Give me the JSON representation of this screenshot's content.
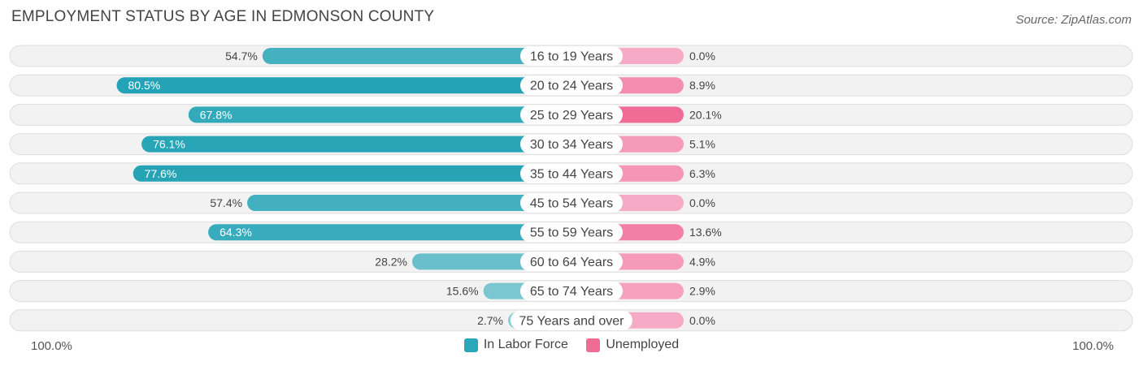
{
  "title": "EMPLOYMENT STATUS BY AGE IN EDMONSON COUNTY",
  "source": "Source: ZipAtlas.com",
  "axis": {
    "left_label": "100.0%",
    "right_label": "100.0%"
  },
  "legend": [
    {
      "label": "In Labor Force",
      "color": "#2aa7b8"
    },
    {
      "label": "Unemployed",
      "color": "#f06b96"
    }
  ],
  "chart_data": {
    "type": "bar",
    "orientation": "horizontal-diverging",
    "title": "EMPLOYMENT STATUS BY AGE IN EDMONSON COUNTY",
    "categories": [
      "16 to 19 Years",
      "20 to 24 Years",
      "25 to 29 Years",
      "30 to 34 Years",
      "35 to 44 Years",
      "45 to 54 Years",
      "55 to 59 Years",
      "60 to 64 Years",
      "65 to 74 Years",
      "75 Years and over"
    ],
    "series": [
      {
        "name": "In Labor Force",
        "values": [
          54.7,
          80.5,
          67.8,
          76.1,
          77.6,
          57.4,
          64.3,
          28.2,
          15.6,
          2.7
        ],
        "labels": [
          "54.7%",
          "80.5%",
          "67.8%",
          "76.1%",
          "77.6%",
          "57.4%",
          "64.3%",
          "28.2%",
          "15.6%",
          "2.7%"
        ]
      },
      {
        "name": "Unemployed",
        "values": [
          0.0,
          8.9,
          20.1,
          5.1,
          6.3,
          0.0,
          13.6,
          4.9,
          2.9,
          0.0
        ],
        "labels": [
          "0.0%",
          "8.9%",
          "20.1%",
          "5.1%",
          "6.3%",
          "0.0%",
          "13.6%",
          "4.9%",
          "2.9%",
          "0.0%"
        ]
      }
    ],
    "xlim": [
      -100,
      100
    ],
    "legend_position": "bottom-center"
  }
}
